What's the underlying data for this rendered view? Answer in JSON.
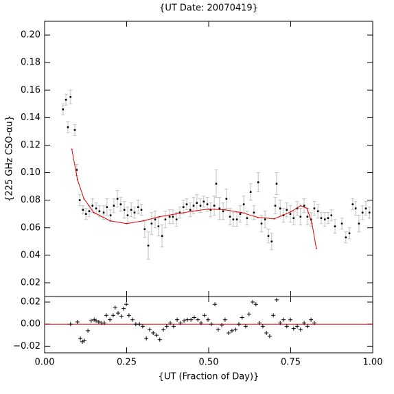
{
  "chart_data": [
    {
      "type": "scatter",
      "title": "{UT Date: 20070419}",
      "ylabel": "{225 GHz CSO-αu}",
      "x": [
        0.056,
        0.065,
        0.071,
        0.079,
        0.092,
        0.098,
        0.107,
        0.117,
        0.126,
        0.136,
        0.146,
        0.157,
        0.167,
        0.18,
        0.19,
        0.201,
        0.211,
        0.222,
        0.232,
        0.243,
        0.253,
        0.264,
        0.274,
        0.285,
        0.295,
        0.305,
        0.316,
        0.326,
        0.337,
        0.347,
        0.358,
        0.368,
        0.381,
        0.391,
        0.402,
        0.412,
        0.423,
        0.433,
        0.444,
        0.454,
        0.464,
        0.475,
        0.485,
        0.496,
        0.506,
        0.517,
        0.523,
        0.533,
        0.544,
        0.554,
        0.565,
        0.575,
        0.586,
        0.596,
        0.607,
        0.617,
        0.628,
        0.638,
        0.651,
        0.661,
        0.672,
        0.682,
        0.692,
        0.703,
        0.707,
        0.718,
        0.728,
        0.738,
        0.749,
        0.759,
        0.77,
        0.78,
        0.791,
        0.801,
        0.812,
        0.822,
        0.833,
        0.843,
        0.854,
        0.864,
        0.874,
        0.885,
        0.906,
        0.918,
        0.929,
        0.939,
        0.948,
        0.958,
        0.969,
        0.979,
        0.99
      ],
      "values": [
        0.146,
        0.153,
        0.133,
        0.155,
        0.131,
        0.102,
        0.08,
        0.073,
        0.07,
        0.072,
        0.076,
        0.074,
        0.072,
        0.071,
        0.075,
        0.069,
        0.076,
        0.081,
        0.077,
        0.073,
        0.069,
        0.073,
        0.071,
        0.075,
        0.073,
        0.059,
        0.047,
        0.063,
        0.066,
        0.061,
        0.054,
        0.066,
        0.068,
        0.068,
        0.066,
        0.071,
        0.075,
        0.077,
        0.073,
        0.076,
        0.078,
        0.076,
        0.079,
        0.077,
        0.073,
        0.076,
        0.092,
        0.074,
        0.072,
        0.081,
        0.068,
        0.066,
        0.066,
        0.07,
        0.077,
        0.067,
        0.086,
        0.071,
        0.093,
        0.063,
        0.066,
        0.054,
        0.05,
        0.076,
        0.092,
        0.074,
        0.069,
        0.073,
        0.07,
        0.067,
        0.074,
        0.068,
        0.076,
        0.068,
        0.066,
        0.074,
        0.072,
        0.067,
        0.066,
        0.067,
        0.069,
        0.061,
        0.063,
        0.053,
        0.056,
        0.077,
        0.074,
        0.063,
        0.071,
        0.074,
        0.071
      ],
      "errors": [
        0.004,
        0.004,
        0.004,
        0.005,
        0.004,
        0.004,
        0.004,
        0.003,
        0.004,
        0.004,
        0.005,
        0.004,
        0.004,
        0.005,
        0.006,
        0.004,
        0.005,
        0.006,
        0.005,
        0.006,
        0.006,
        0.005,
        0.004,
        0.005,
        0.004,
        0.006,
        0.01,
        0.008,
        0.006,
        0.007,
        0.008,
        0.006,
        0.005,
        0.005,
        0.005,
        0.004,
        0.005,
        0.004,
        0.005,
        0.006,
        0.006,
        0.005,
        0.004,
        0.005,
        0.005,
        0.007,
        0.01,
        0.008,
        0.006,
        0.007,
        0.006,
        0.005,
        0.005,
        0.006,
        0.006,
        0.005,
        0.006,
        0.005,
        0.007,
        0.006,
        0.006,
        0.005,
        0.006,
        0.006,
        0.008,
        0.006,
        0.005,
        0.005,
        0.006,
        0.005,
        0.005,
        0.006,
        0.005,
        0.006,
        0.005,
        0.005,
        0.005,
        0.004,
        0.005,
        0.004,
        0.004,
        0.005,
        0.004,
        0.004,
        0.004,
        0.004,
        0.005,
        0.006,
        0.005,
        0.005,
        0.004
      ],
      "color": "#000000",
      "error_color": "#c0c0c0",
      "fit": {
        "color": "#e00000",
        "x": [
          0.083,
          0.1,
          0.12,
          0.15,
          0.2,
          0.25,
          0.3,
          0.35,
          0.4,
          0.45,
          0.5,
          0.55,
          0.6,
          0.65,
          0.7,
          0.75,
          0.78,
          0.8,
          0.815,
          0.828
        ],
        "values": [
          0.117,
          0.095,
          0.081,
          0.071,
          0.065,
          0.063,
          0.065,
          0.068,
          0.07,
          0.072,
          0.0735,
          0.073,
          0.071,
          0.0675,
          0.0665,
          0.0715,
          0.076,
          0.074,
          0.063,
          0.045
        ]
      },
      "xlim": [
        0,
        1
      ],
      "xticks": [
        0,
        0.25,
        0.5,
        0.75,
        1
      ],
      "ylim": [
        0.01,
        0.21
      ],
      "yticks": [
        {
          "value": 0.02,
          "label": "0.02"
        },
        {
          "value": 0.04,
          "label": "0.04"
        },
        {
          "value": 0.06,
          "label": "0.06"
        },
        {
          "value": 0.08,
          "label": "0.08"
        },
        {
          "value": 0.1,
          "label": "0.10"
        },
        {
          "value": 0.12,
          "label": "0.12"
        },
        {
          "value": 0.14,
          "label": "0.14"
        },
        {
          "value": 0.16,
          "label": "0.16"
        },
        {
          "value": 0.18,
          "label": "0.18"
        },
        {
          "value": 0.2,
          "label": "0.20"
        }
      ]
    },
    {
      "type": "residual",
      "xlabel": "{UT (Fraction of Day)}",
      "x": [
        0.079,
        0.1,
        0.109,
        0.115,
        0.121,
        0.132,
        0.142,
        0.151,
        0.157,
        0.165,
        0.174,
        0.182,
        0.188,
        0.199,
        0.209,
        0.215,
        0.224,
        0.234,
        0.241,
        0.249,
        0.257,
        0.268,
        0.278,
        0.289,
        0.299,
        0.31,
        0.32,
        0.331,
        0.341,
        0.351,
        0.362,
        0.372,
        0.383,
        0.393,
        0.404,
        0.414,
        0.425,
        0.435,
        0.446,
        0.456,
        0.467,
        0.477,
        0.487,
        0.498,
        0.508,
        0.519,
        0.529,
        0.54,
        0.55,
        0.561,
        0.571,
        0.582,
        0.592,
        0.602,
        0.613,
        0.623,
        0.634,
        0.644,
        0.655,
        0.665,
        0.676,
        0.686,
        0.697,
        0.707,
        0.718,
        0.728,
        0.738,
        0.749,
        0.759,
        0.77,
        0.78,
        0.791,
        0.801,
        0.812,
        0.822
      ],
      "values": [
        0,
        0.002,
        -0.013,
        -0.016,
        -0.015,
        -0.006,
        0.003,
        0.004,
        0.003,
        0.002,
        0.001,
        0.001,
        0.008,
        0.004,
        0.008,
        0.015,
        0.01,
        0.007,
        0.014,
        0.018,
        0.008,
        0.004,
        0,
        0,
        -0.002,
        -0.013,
        -0.005,
        -0.008,
        -0.01,
        -0.014,
        -0.005,
        -0.002,
        0.001,
        -0.002,
        0.004,
        0.001,
        0.003,
        0.004,
        0.004,
        0.006,
        0.004,
        0.001,
        0.008,
        0.004,
        0,
        0.018,
        -0.005,
        -0.001,
        0.004,
        -0.008,
        -0.006,
        -0.005,
        0,
        0.006,
        -0.002,
        0.009,
        0.02,
        0.018,
        0.001,
        -0.002,
        -0.008,
        -0.011,
        0.008,
        0.022,
        0.001,
        0.004,
        -0.002,
        0.004,
        -0.004,
        -0.002,
        -0.005,
        0.001,
        -0.002,
        0.004,
        0.001
      ],
      "color": "#000000",
      "hline": 0,
      "hline_color": "#e00000",
      "xlim": [
        0,
        1
      ],
      "xticks": [
        {
          "value": 0,
          "label": "0.00"
        },
        {
          "value": 0.25,
          "label": "0.25"
        },
        {
          "value": 0.5,
          "label": "0.50"
        },
        {
          "value": 0.75,
          "label": "0.75"
        },
        {
          "value": 1,
          "label": "1.00"
        }
      ],
      "ylim": [
        -0.026,
        0.025
      ],
      "yticks": [
        {
          "value": -0.02,
          "label": "−0.02"
        },
        {
          "value": 0,
          "label": "0.00"
        },
        {
          "value": 0.02,
          "label": "0.02"
        }
      ]
    }
  ]
}
